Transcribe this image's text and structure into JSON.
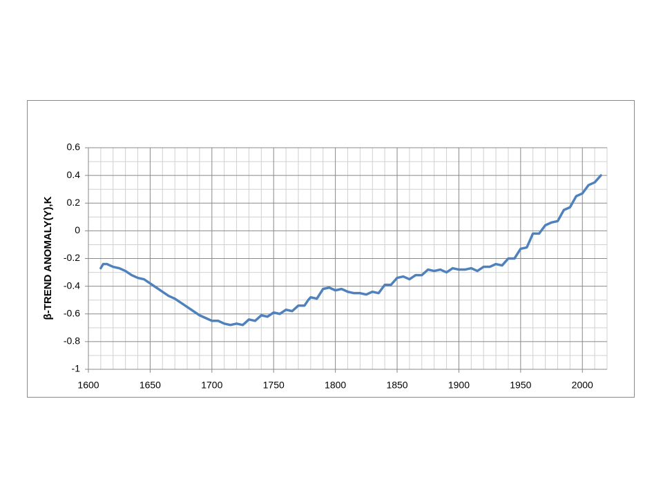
{
  "chart_data": {
    "type": "line",
    "y_label": "β-TREND ANOMALY(Y),K",
    "x": [
      1610,
      1612,
      1615,
      1620,
      1625,
      1630,
      1635,
      1640,
      1645,
      1650,
      1655,
      1660,
      1665,
      1670,
      1675,
      1680,
      1685,
      1690,
      1695,
      1700,
      1705,
      1710,
      1715,
      1720,
      1725,
      1730,
      1735,
      1740,
      1745,
      1750,
      1755,
      1760,
      1765,
      1770,
      1775,
      1778,
      1780,
      1785,
      1790,
      1795,
      1800,
      1805,
      1810,
      1815,
      1820,
      1825,
      1830,
      1835,
      1840,
      1845,
      1850,
      1855,
      1860,
      1865,
      1870,
      1875,
      1880,
      1885,
      1890,
      1895,
      1900,
      1905,
      1910,
      1915,
      1920,
      1925,
      1930,
      1935,
      1940,
      1945,
      1950,
      1955,
      1960,
      1965,
      1970,
      1975,
      1980,
      1985,
      1990,
      1995,
      2000,
      2005,
      2010,
      2015
    ],
    "values": [
      -0.27,
      -0.24,
      -0.24,
      -0.26,
      -0.27,
      -0.29,
      -0.32,
      -0.34,
      -0.35,
      -0.38,
      -0.41,
      -0.44,
      -0.47,
      -0.49,
      -0.52,
      -0.55,
      -0.58,
      -0.61,
      -0.63,
      -0.65,
      -0.65,
      -0.67,
      -0.68,
      -0.67,
      -0.68,
      -0.64,
      -0.65,
      -0.61,
      -0.62,
      -0.59,
      -0.6,
      -0.57,
      -0.58,
      -0.54,
      -0.54,
      -0.5,
      -0.48,
      -0.49,
      -0.42,
      -0.41,
      -0.43,
      -0.42,
      -0.44,
      -0.45,
      -0.45,
      -0.46,
      -0.44,
      -0.45,
      -0.39,
      -0.39,
      -0.34,
      -0.33,
      -0.35,
      -0.32,
      -0.32,
      -0.28,
      -0.29,
      -0.28,
      -0.3,
      -0.27,
      -0.28,
      -0.28,
      -0.27,
      -0.29,
      -0.26,
      -0.26,
      -0.24,
      -0.25,
      -0.2,
      -0.2,
      -0.13,
      -0.12,
      -0.02,
      -0.02,
      0.04,
      0.06,
      0.07,
      0.15,
      0.17,
      0.25,
      0.27,
      0.33,
      0.35,
      0.4
    ],
    "color": "#4f81bd",
    "xlim": [
      1600,
      2020
    ],
    "xticks": [
      1600,
      1650,
      1700,
      1750,
      1800,
      1850,
      1900,
      1950,
      2000
    ],
    "ylim": [
      -1,
      0.6
    ],
    "yticks": [
      0.6,
      0.4,
      0.2,
      0,
      -0.2,
      -0.4,
      -0.6,
      -0.8,
      -1
    ],
    "grid": true
  }
}
